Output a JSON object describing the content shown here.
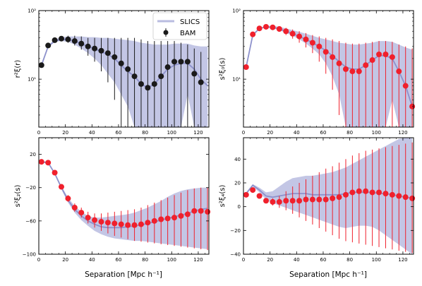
{
  "figure": {
    "xlabel": "Separation  [Mpc h⁻¹]",
    "x_ticks": [
      "0",
      "20",
      "40",
      "60",
      "80",
      "100",
      "120"
    ],
    "legend": {
      "band_label": "SLICS",
      "points_label": "BAM"
    },
    "colors": {
      "band": "#b9bce0",
      "band_line": "#8d91cc",
      "black_points": "#1a1a1a",
      "red_points": "#f0202c"
    }
  },
  "chart_data": [
    {
      "id": "r2xi",
      "type": "scatter",
      "title": "",
      "ylabel": "r²ξ(r)",
      "xlim": [
        0,
        128
      ],
      "ylim": [
        2,
        100
      ],
      "yscale": "log",
      "y_ticks": [
        "10¹",
        "10²"
      ],
      "y_tick_values": [
        10,
        100
      ],
      "legend_position": "top-right",
      "point_color": "black",
      "series": [
        {
          "name": "BAM",
          "kind": "points_with_errorbars",
          "x": [
            2,
            7,
            12,
            17,
            22,
            27,
            32,
            37,
            42,
            47,
            52,
            57,
            62,
            67,
            72,
            77,
            82,
            87,
            92,
            97,
            102,
            107,
            112,
            117,
            122
          ],
          "y": [
            16,
            31,
            37,
            39,
            38,
            36,
            33,
            30,
            28,
            26,
            24,
            21,
            17,
            14,
            11,
            8.5,
            7.5,
            8.5,
            11,
            15,
            18,
            18,
            18,
            12,
            9
          ],
          "lo": [
            15,
            29,
            35,
            36,
            34,
            31,
            27,
            22,
            18,
            13,
            9,
            5,
            2,
            2,
            2,
            2,
            2,
            2,
            2,
            2,
            2,
            2,
            2,
            2,
            2
          ],
          "hi": [
            17,
            33,
            39,
            42,
            43,
            43,
            42,
            40,
            40,
            40,
            40,
            40,
            40,
            40,
            40,
            38,
            36,
            36,
            36,
            36,
            36,
            34,
            32,
            28,
            25
          ]
        },
        {
          "name": "SLICS",
          "kind": "band",
          "x": [
            2,
            7,
            12,
            17,
            22,
            27,
            32,
            37,
            42,
            47,
            52,
            57,
            62,
            67,
            72,
            77,
            82,
            87,
            92,
            97,
            102,
            107,
            112,
            117,
            122,
            127
          ],
          "mean": [
            16,
            30,
            36,
            38,
            38,
            36,
            33,
            30,
            28,
            25,
            23,
            20,
            16,
            13,
            11,
            8.5,
            7.5,
            8.5,
            11,
            14,
            16,
            17,
            17,
            14,
            10,
            8
          ],
          "lo": [
            15,
            29,
            35,
            36,
            35,
            32,
            28,
            24,
            20,
            16,
            12,
            9,
            6,
            4,
            2,
            2,
            2,
            2,
            2,
            2,
            2,
            2,
            6,
            2,
            2,
            2
          ],
          "hi": [
            17,
            31,
            38,
            41,
            42,
            42,
            42,
            41,
            41,
            40,
            40,
            39,
            38,
            37,
            36,
            34,
            33,
            32,
            32,
            32,
            33,
            33,
            33,
            31,
            30,
            30
          ]
        }
      ]
    },
    {
      "id": "s2xi0",
      "type": "scatter",
      "title": "",
      "ylabel": "s²ξ₀(s)",
      "xlim": [
        0,
        128
      ],
      "ylim": [
        2,
        100
      ],
      "yscale": "log",
      "y_ticks": [
        "10¹",
        "10²"
      ],
      "y_tick_values": [
        10,
        100
      ],
      "point_color": "red",
      "series": [
        {
          "name": "BAM",
          "kind": "points_with_errorbars",
          "x": [
            2,
            7,
            12,
            17,
            22,
            27,
            32,
            37,
            42,
            47,
            52,
            57,
            62,
            67,
            72,
            77,
            82,
            87,
            92,
            97,
            102,
            107,
            112,
            117,
            122,
            127
          ],
          "y": [
            15,
            45,
            55,
            58,
            57,
            54,
            50,
            46,
            42,
            38,
            34,
            30,
            25,
            21,
            17,
            14,
            13,
            13,
            16,
            19,
            23,
            23,
            21,
            13,
            8,
            4
          ],
          "lo": [
            14,
            43,
            53,
            55,
            53,
            49,
            44,
            39,
            34,
            29,
            24,
            18,
            12,
            7,
            3,
            2,
            2,
            2,
            2,
            2,
            2,
            2,
            2,
            2,
            2,
            2
          ],
          "hi": [
            16,
            47,
            57,
            61,
            61,
            59,
            56,
            53,
            50,
            47,
            44,
            42,
            40,
            38,
            36,
            34,
            33,
            33,
            34,
            35,
            36,
            36,
            35,
            32,
            30,
            28
          ]
        },
        {
          "name": "SLICS",
          "kind": "band",
          "x": [
            2,
            7,
            12,
            17,
            22,
            27,
            32,
            37,
            42,
            47,
            52,
            57,
            62,
            67,
            72,
            77,
            82,
            87,
            92,
            97,
            102,
            107,
            112,
            117,
            122,
            127
          ],
          "mean": [
            15,
            44,
            55,
            58,
            57,
            54,
            50,
            46,
            42,
            38,
            34,
            30,
            26,
            22,
            18,
            15,
            14,
            14,
            16,
            19,
            22,
            22,
            20,
            13,
            8,
            4
          ],
          "lo": [
            14,
            43,
            54,
            56,
            55,
            52,
            47,
            43,
            38,
            33,
            28,
            23,
            17,
            11,
            6,
            2,
            2,
            2,
            2,
            2,
            2,
            2,
            5,
            2,
            2,
            2
          ],
          "hi": [
            16,
            45,
            56,
            60,
            60,
            58,
            55,
            52,
            49,
            46,
            43,
            40,
            38,
            36,
            34,
            33,
            32,
            32,
            33,
            34,
            36,
            36,
            35,
            32,
            29,
            27
          ]
        }
      ]
    },
    {
      "id": "s2xi2",
      "type": "scatter",
      "title": "",
      "ylabel": "s²ξ₂(s)",
      "xlim": [
        0,
        128
      ],
      "ylim": [
        -100,
        40
      ],
      "yscale": "linear",
      "y_ticks": [
        "−100",
        "−60",
        "−20",
        "20"
      ],
      "y_tick_values": [
        -100,
        -60,
        -20,
        20
      ],
      "point_color": "red",
      "series": [
        {
          "name": "BAM",
          "kind": "points_with_errorbars",
          "x": [
            2,
            7,
            12,
            17,
            22,
            27,
            32,
            37,
            42,
            47,
            52,
            57,
            62,
            67,
            72,
            77,
            82,
            87,
            92,
            97,
            102,
            107,
            112,
            117,
            122,
            127
          ],
          "y": [
            11,
            10,
            -2,
            -19,
            -33,
            -44,
            -50,
            -56,
            -59,
            -61,
            -62,
            -63,
            -64,
            -65,
            -65,
            -64,
            -62,
            -60,
            -58,
            -57,
            -56,
            -54,
            -52,
            -48,
            -48,
            -49
          ],
          "lo": [
            10,
            9,
            -4,
            -22,
            -37,
            -49,
            -56,
            -63,
            -68,
            -72,
            -75,
            -78,
            -80,
            -82,
            -84,
            -85,
            -86,
            -87,
            -88,
            -89,
            -90,
            -91,
            -92,
            -93,
            -94,
            -95
          ],
          "hi": [
            12,
            11,
            0,
            -16,
            -29,
            -39,
            -44,
            -49,
            -51,
            -51,
            -50,
            -49,
            -48,
            -47,
            -46,
            -44,
            -41,
            -38,
            -35,
            -32,
            -29,
            -26,
            -23,
            -21,
            -20,
            -20
          ]
        },
        {
          "name": "SLICS",
          "kind": "band",
          "x": [
            2,
            7,
            12,
            17,
            22,
            27,
            32,
            37,
            42,
            47,
            52,
            57,
            62,
            67,
            72,
            77,
            82,
            87,
            92,
            97,
            102,
            107,
            112,
            117,
            122,
            127
          ],
          "mean": [
            11,
            10,
            -3,
            -20,
            -35,
            -46,
            -54,
            -60,
            -64,
            -67,
            -68,
            -68,
            -68,
            -67,
            -66,
            -65,
            -63,
            -61,
            -59,
            -57,
            -55,
            -53,
            -51,
            -48,
            -46,
            -45
          ],
          "lo": [
            10,
            9,
            -4,
            -22,
            -38,
            -50,
            -59,
            -66,
            -72,
            -76,
            -79,
            -81,
            -82,
            -83,
            -84,
            -84,
            -85,
            -86,
            -87,
            -88,
            -89,
            -90,
            -91,
            -92,
            -93,
            -94
          ],
          "hi": [
            12,
            11,
            -2,
            -18,
            -32,
            -42,
            -49,
            -54,
            -56,
            -56,
            -55,
            -54,
            -53,
            -52,
            -50,
            -47,
            -44,
            -40,
            -36,
            -31,
            -27,
            -24,
            -22,
            -21,
            -20,
            -20
          ]
        }
      ]
    },
    {
      "id": "s2xi4",
      "type": "scatter",
      "title": "",
      "ylabel": "s²ξ₄(s)",
      "xlim": [
        0,
        128
      ],
      "ylim": [
        -40,
        58
      ],
      "yscale": "linear",
      "y_ticks": [
        "−40",
        "−20",
        "0",
        "20",
        "40"
      ],
      "y_tick_values": [
        -40,
        -20,
        0,
        20,
        40
      ],
      "point_color": "red",
      "series": [
        {
          "name": "BAM",
          "kind": "points_with_errorbars",
          "x": [
            2,
            7,
            12,
            17,
            22,
            27,
            32,
            37,
            42,
            47,
            52,
            57,
            62,
            67,
            72,
            77,
            82,
            87,
            92,
            97,
            102,
            107,
            112,
            117,
            122,
            127
          ],
          "y": [
            10,
            14,
            9,
            5,
            4,
            4,
            5,
            5,
            5,
            6,
            6,
            6,
            6,
            7,
            8,
            10,
            12,
            13,
            13,
            12,
            12,
            11,
            10,
            9,
            8,
            7
          ],
          "lo": [
            9,
            13,
            8,
            3,
            1,
            -1,
            -3,
            -6,
            -9,
            -12,
            -15,
            -18,
            -21,
            -24,
            -27,
            -29,
            -30,
            -31,
            -32,
            -33,
            -34,
            -35,
            -36,
            -37,
            -38,
            -39
          ],
          "hi": [
            11,
            15,
            10,
            7,
            7,
            9,
            13,
            17,
            20,
            23,
            26,
            29,
            32,
            34,
            37,
            40,
            43,
            45,
            47,
            48,
            49,
            50,
            51,
            52,
            53,
            54
          ]
        },
        {
          "name": "SLICS",
          "kind": "band",
          "x": [
            2,
            7,
            12,
            17,
            22,
            27,
            32,
            37,
            42,
            47,
            52,
            57,
            62,
            67,
            72,
            77,
            82,
            87,
            92,
            97,
            102,
            107,
            112,
            117,
            122,
            127
          ],
          "mean": [
            11,
            18,
            14,
            9,
            8,
            9,
            10,
            11,
            11,
            11,
            10,
            10,
            10,
            10,
            10,
            11,
            12,
            12,
            12,
            12,
            11,
            11,
            10,
            9,
            8,
            7
          ],
          "lo": [
            10,
            17,
            12,
            6,
            3,
            1,
            -1,
            -3,
            -5,
            -7,
            -9,
            -11,
            -13,
            -15,
            -17,
            -18,
            -17,
            -16,
            -16,
            -17,
            -20,
            -24,
            -28,
            -32,
            -36,
            -40
          ],
          "hi": [
            12,
            19,
            16,
            12,
            13,
            17,
            21,
            24,
            25,
            26,
            26,
            27,
            28,
            29,
            31,
            33,
            36,
            39,
            42,
            45,
            48,
            51,
            54,
            57,
            58,
            58
          ]
        }
      ]
    }
  ]
}
